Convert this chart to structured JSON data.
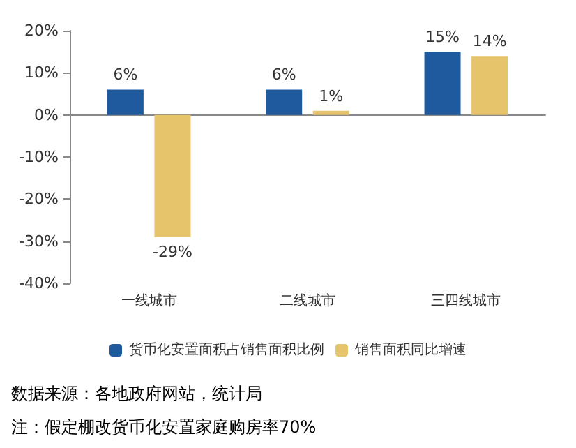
{
  "chart_data": {
    "type": "bar",
    "categories": [
      "一线城市",
      "二线城市",
      "三四线城市"
    ],
    "series": [
      {
        "name": "货币化安置面积占销售面积比例",
        "color": "#1f5a9e",
        "values": [
          6,
          6,
          15
        ],
        "value_labels": [
          "6%",
          "6%",
          "15%"
        ]
      },
      {
        "name": "销售面积同比增速",
        "color": "#e6c46c",
        "values": [
          -29,
          1,
          14
        ],
        "value_labels": [
          "-29%",
          "1%",
          "14%"
        ]
      }
    ],
    "ylim": [
      -40,
      20
    ],
    "yticks": [
      {
        "value": -40,
        "label": "-40%"
      },
      {
        "value": -30,
        "label": "-30%"
      },
      {
        "value": -20,
        "label": "-20%"
      },
      {
        "value": -10,
        "label": "-10%"
      },
      {
        "value": 0,
        "label": "0%"
      },
      {
        "value": 10,
        "label": "10%"
      },
      {
        "value": 20,
        "label": "20%"
      }
    ],
    "legend": "bottom",
    "annotations": [
      "数据来源：各地政府网站，统计局",
      "注：假定棚改货币化安置家庭购房率70%"
    ]
  }
}
